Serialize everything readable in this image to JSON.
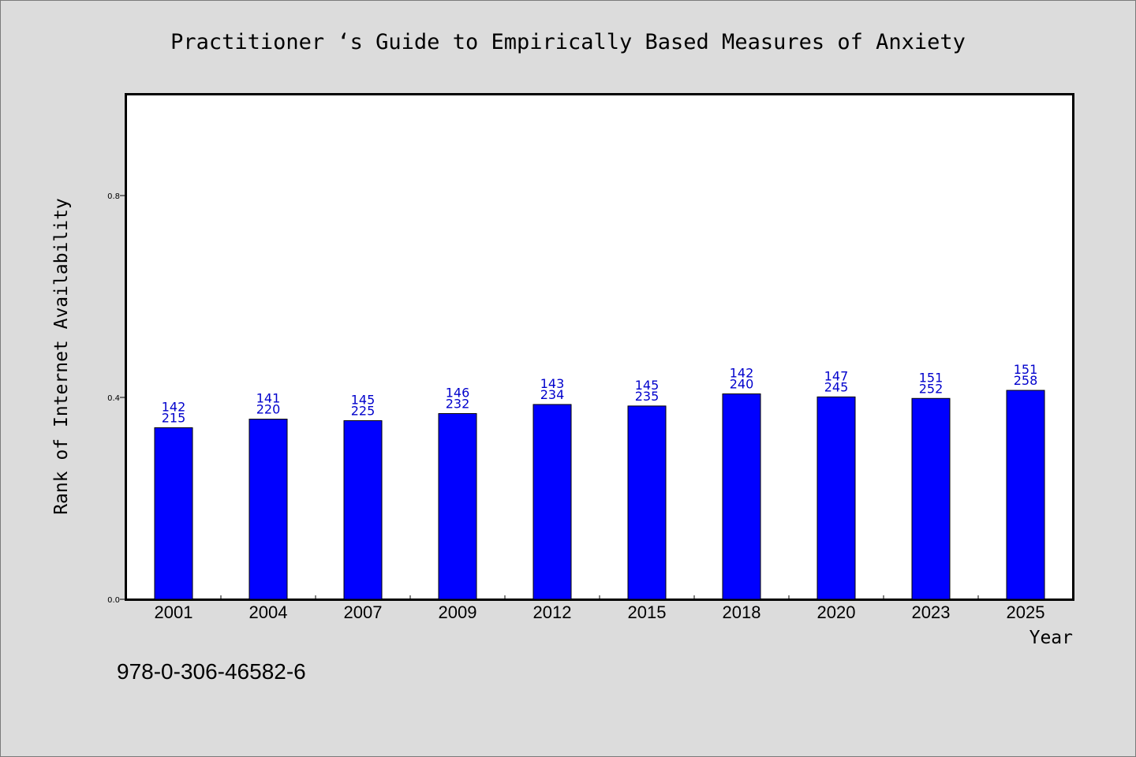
{
  "chart_data": {
    "type": "bar",
    "title": "Practitioner ‘s Guide to Empirically Based Measures of Anxiety",
    "xlabel": "Year",
    "ylabel": "Rank of Internet Availability",
    "categories": [
      "2001",
      "2004",
      "2007",
      "2009",
      "2012",
      "2015",
      "2018",
      "2020",
      "2023",
      "2025"
    ],
    "series": [
      {
        "values": [
          0.34,
          0.357,
          0.354,
          0.368,
          0.386,
          0.383,
          0.407,
          0.401,
          0.398,
          0.414
        ],
        "labels_top": [
          "142",
          "141",
          "145",
          "146",
          "143",
          "145",
          "142",
          "147",
          "151",
          "151"
        ],
        "labels_bottom": [
          "215",
          "220",
          "225",
          "232",
          "234",
          "235",
          "240",
          "245",
          "252",
          "258"
        ],
        "color": "#0000ff"
      }
    ],
    "ylim": [
      0,
      1.0
    ],
    "yticks": [
      "0.0",
      "0.4",
      "0.8"
    ],
    "ytick_values": [
      0.0,
      0.4,
      0.8
    ],
    "grid": false,
    "label_color": "#0000cc"
  },
  "footer": {
    "isbn": "978-0-306-46582-6"
  }
}
